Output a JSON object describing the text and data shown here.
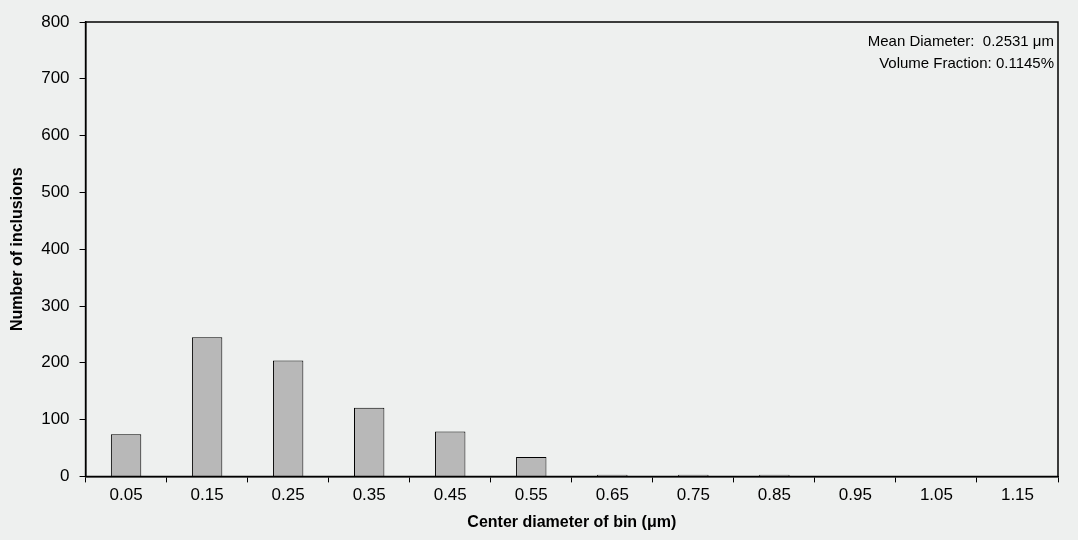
{
  "chart_data": {
    "type": "bar",
    "xlabel": "Center diameter of bin (μm)",
    "ylabel": "Number of inclusions",
    "categories": [
      "0.05",
      "0.15",
      "0.25",
      "0.35",
      "0.45",
      "0.55",
      "0.65",
      "0.75",
      "0.85",
      "0.95",
      "1.05",
      "1.15"
    ],
    "values": [
      74,
      245,
      204,
      121,
      79,
      34,
      3,
      3,
      3,
      0,
      0,
      0
    ],
    "color": "#b8b8b8",
    "ylim": [
      0,
      800
    ],
    "yticks": [
      0,
      100,
      200,
      300,
      400,
      500,
      600,
      700,
      800
    ],
    "grid": false,
    "legend": false,
    "annotations": [
      "Mean Diameter:  0.2531 μm",
      "Volume Fraction: 0.1145%"
    ]
  }
}
